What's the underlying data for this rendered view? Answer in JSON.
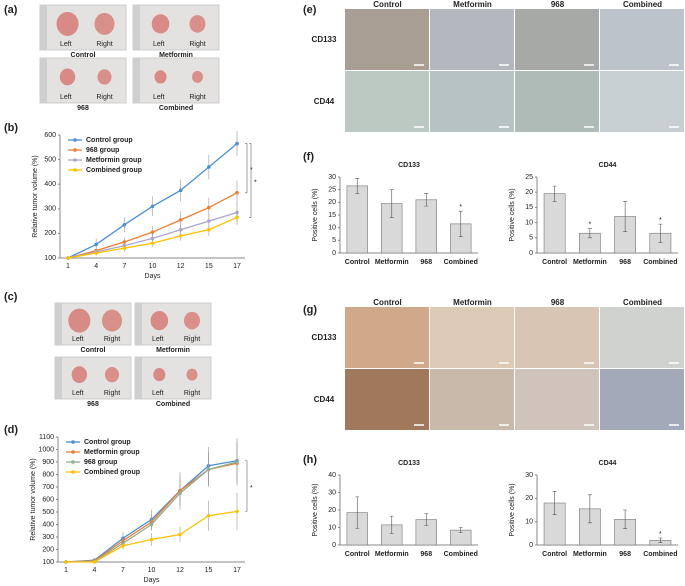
{
  "panels": {
    "a": "(a)",
    "b": "(b)",
    "c": "(c)",
    "d": "(d)",
    "e": "(e)",
    "f": "(f)",
    "g": "(g)",
    "h": "(h)"
  },
  "photos_a": {
    "groups": [
      "Control",
      "Metformin",
      "968",
      "Combined"
    ],
    "left": "Left",
    "right": "Right"
  },
  "photos_c": {
    "groups": [
      "Control",
      "Metformin",
      "968",
      "Combined"
    ],
    "left": "Left",
    "right": "Right"
  },
  "ihc_e": {
    "columns": [
      "Control",
      "Metformin",
      "968",
      "Combined"
    ],
    "rows": [
      "CD133",
      "CD44"
    ]
  },
  "ihc_g": {
    "columns": [
      "Control",
      "Metformin",
      "968",
      "Combined"
    ],
    "rows": [
      "CD133",
      "CD44"
    ]
  },
  "chart_data": [
    {
      "type": "line",
      "x_label": "Days",
      "y_label": "Relative tumor volume (%)",
      "categories": [
        1,
        4,
        7,
        10,
        12,
        15,
        17
      ],
      "ylim": [
        100,
        600
      ],
      "yticks": [
        100,
        200,
        300,
        400,
        500,
        600
      ],
      "legend": "upper left",
      "series": [
        {
          "name": "Control group",
          "color": "#4a8fd6",
          "values": [
            100,
            155,
            235,
            310,
            375,
            470,
            565
          ],
          "errors": [
            0,
            25,
            30,
            40,
            45,
            50,
            50
          ]
        },
        {
          "name": "968 group",
          "color": "#ed7d31",
          "values": [
            100,
            130,
            165,
            205,
            255,
            305,
            365
          ],
          "errors": [
            0,
            15,
            20,
            25,
            35,
            40,
            50
          ]
        },
        {
          "name": "Metformin group",
          "color": "#a9a6cc",
          "values": [
            100,
            125,
            150,
            180,
            215,
            250,
            285
          ],
          "errors": [
            0,
            10,
            15,
            20,
            25,
            30,
            35
          ]
        },
        {
          "name": "Combined group",
          "color": "#ffc000",
          "values": [
            100,
            120,
            140,
            160,
            190,
            215,
            265
          ],
          "errors": [
            0,
            10,
            15,
            15,
            20,
            25,
            30
          ]
        }
      ],
      "annotations": [
        {
          "text": "*",
          "between": [
            "Control group",
            "968 group"
          ]
        },
        {
          "text": "*",
          "between": [
            "Control group",
            "Combined group"
          ]
        }
      ]
    },
    {
      "type": "line",
      "x_label": "Days",
      "y_label": "Relative tumor volume (%)",
      "categories": [
        1,
        4,
        7,
        10,
        12,
        15,
        17
      ],
      "ylim": [
        100,
        1100
      ],
      "yticks": [
        100,
        200,
        300,
        400,
        500,
        600,
        700,
        800,
        900,
        1000,
        1100
      ],
      "legend": "upper left",
      "series": [
        {
          "name": "Control group",
          "color": "#4a8fd6",
          "values": [
            100,
            115,
            290,
            440,
            670,
            870,
            910
          ],
          "errors": [
            0,
            10,
            50,
            80,
            150,
            150,
            180
          ]
        },
        {
          "name": "Metformin group",
          "color": "#ed7d31",
          "values": [
            100,
            110,
            270,
            420,
            670,
            840,
            890
          ],
          "errors": [
            0,
            10,
            40,
            60,
            120,
            130,
            180
          ]
        },
        {
          "name": "968 group",
          "color": "#8fae8f",
          "values": [
            100,
            105,
            250,
            400,
            650,
            840,
            900
          ],
          "errors": [
            0,
            10,
            40,
            50,
            100,
            140,
            150
          ]
        },
        {
          "name": "Combined group",
          "color": "#ffc000",
          "values": [
            100,
            100,
            230,
            280,
            320,
            470,
            505
          ],
          "errors": [
            0,
            5,
            30,
            50,
            60,
            120,
            150
          ]
        }
      ],
      "annotations": [
        {
          "text": "*",
          "between": [
            "Control group",
            "Combined group"
          ]
        }
      ]
    },
    {
      "type": "bar",
      "title": "CD133",
      "y_label": "Positive cells (%)",
      "categories": [
        "Control",
        "Metformin",
        "968",
        "Combined"
      ],
      "values": [
        26.5,
        19.5,
        21,
        11.5
      ],
      "errors": [
        3,
        5.5,
        2.5,
        5
      ],
      "color": "#d9d9d9",
      "ylim": [
        0,
        30
      ],
      "yticks": [
        0,
        5,
        10,
        15,
        20,
        25,
        30
      ],
      "annotations": [
        {
          "text": "*",
          "category": "Combined"
        }
      ]
    },
    {
      "type": "bar",
      "title": "CD44",
      "y_label": "Positive cells (%)",
      "categories": [
        "Control",
        "Metformin",
        "968",
        "Combined"
      ],
      "values": [
        19.5,
        6.5,
        12,
        6.5
      ],
      "errors": [
        2.5,
        1.5,
        5,
        3
      ],
      "color": "#d9d9d9",
      "ylim": [
        0,
        25
      ],
      "yticks": [
        0,
        5,
        10,
        15,
        20,
        25
      ],
      "annotations": [
        {
          "text": "*",
          "category": "Metformin"
        },
        {
          "text": "*",
          "category": "Combined"
        }
      ]
    },
    {
      "type": "bar",
      "title": "CD133",
      "y_label": "Positive cells (%)",
      "categories": [
        "Control",
        "Metformin",
        "968",
        "Combined"
      ],
      "values": [
        18.5,
        11.5,
        14.5,
        8.5
      ],
      "errors": [
        9,
        5,
        3.5,
        1.5
      ],
      "color": "#d9d9d9",
      "ylim": [
        0,
        40
      ],
      "yticks": [
        0,
        10,
        20,
        30,
        40
      ],
      "annotations": []
    },
    {
      "type": "bar",
      "title": "CD44",
      "y_label": "Positive cells (%)",
      "categories": [
        "Control",
        "Metformin",
        "968",
        "Combined"
      ],
      "values": [
        18,
        15.5,
        11,
        2
      ],
      "errors": [
        5,
        6,
        4,
        1
      ],
      "color": "#d9d9d9",
      "ylim": [
        0,
        30
      ],
      "yticks": [
        0,
        10,
        20,
        30
      ],
      "annotations": [
        {
          "text": "*",
          "category": "Combined"
        }
      ]
    }
  ]
}
